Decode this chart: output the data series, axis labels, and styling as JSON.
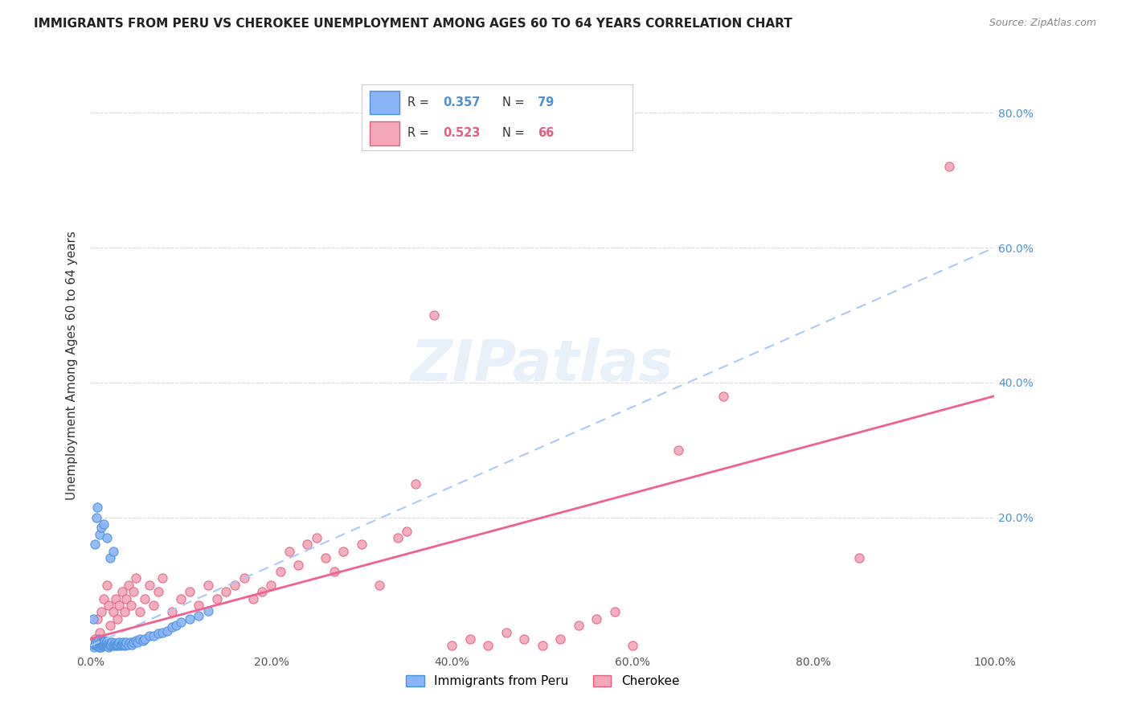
{
  "title": "IMMIGRANTS FROM PERU VS CHEROKEE UNEMPLOYMENT AMONG AGES 60 TO 64 YEARS CORRELATION CHART",
  "source": "Source: ZipAtlas.com",
  "ylabel": "Unemployment Among Ages 60 to 64 years",
  "xlim": [
    0.0,
    1.0
  ],
  "ylim": [
    0.0,
    0.85
  ],
  "xticks": [
    0.0,
    0.2,
    0.4,
    0.6,
    0.8,
    1.0
  ],
  "xticklabels": [
    "0.0%",
    "20.0%",
    "40.0%",
    "60.0%",
    "80.0%",
    "100.0%"
  ],
  "yticks": [
    0.0,
    0.2,
    0.4,
    0.6,
    0.8
  ],
  "right_yticks": [
    0.2,
    0.4,
    0.6,
    0.8
  ],
  "right_yticklabels": [
    "20.0%",
    "40.0%",
    "60.0%",
    "80.0%"
  ],
  "peru_color": "#8ab4f8",
  "cherokee_color": "#f4a7b9",
  "peru_edge_color": "#4a90d9",
  "cherokee_edge_color": "#e06080",
  "peru_line_color": "#aac8f8",
  "cherokee_line_color": "#f06090",
  "legend_r_peru": "0.357",
  "legend_n_peru": "79",
  "legend_r_cherokee": "0.523",
  "legend_n_cherokee": "66",
  "background_color": "#ffffff",
  "peru_scatter_x": [
    0.003,
    0.004,
    0.005,
    0.006,
    0.007,
    0.008,
    0.008,
    0.009,
    0.009,
    0.01,
    0.01,
    0.011,
    0.011,
    0.012,
    0.012,
    0.013,
    0.013,
    0.014,
    0.014,
    0.015,
    0.015,
    0.016,
    0.016,
    0.017,
    0.017,
    0.018,
    0.018,
    0.019,
    0.02,
    0.02,
    0.021,
    0.022,
    0.023,
    0.024,
    0.025,
    0.026,
    0.027,
    0.028,
    0.029,
    0.03,
    0.031,
    0.032,
    0.033,
    0.034,
    0.035,
    0.036,
    0.037,
    0.038,
    0.039,
    0.04,
    0.042,
    0.044,
    0.046,
    0.048,
    0.05,
    0.052,
    0.055,
    0.058,
    0.06,
    0.065,
    0.07,
    0.075,
    0.08,
    0.085,
    0.09,
    0.095,
    0.1,
    0.11,
    0.12,
    0.13,
    0.005,
    0.007,
    0.008,
    0.01,
    0.012,
    0.015,
    0.018,
    0.022,
    0.025
  ],
  "peru_scatter_y": [
    0.05,
    0.008,
    0.012,
    0.015,
    0.01,
    0.01,
    0.018,
    0.008,
    0.02,
    0.012,
    0.008,
    0.01,
    0.015,
    0.008,
    0.012,
    0.01,
    0.014,
    0.012,
    0.016,
    0.01,
    0.018,
    0.012,
    0.016,
    0.01,
    0.014,
    0.012,
    0.016,
    0.01,
    0.008,
    0.014,
    0.012,
    0.01,
    0.012,
    0.015,
    0.01,
    0.012,
    0.014,
    0.01,
    0.012,
    0.01,
    0.012,
    0.015,
    0.01,
    0.012,
    0.012,
    0.015,
    0.012,
    0.01,
    0.012,
    0.015,
    0.012,
    0.015,
    0.012,
    0.015,
    0.018,
    0.015,
    0.02,
    0.018,
    0.02,
    0.025,
    0.025,
    0.028,
    0.03,
    0.032,
    0.038,
    0.04,
    0.045,
    0.05,
    0.055,
    0.062,
    0.16,
    0.2,
    0.215,
    0.175,
    0.185,
    0.19,
    0.17,
    0.14,
    0.15
  ],
  "cherokee_scatter_x": [
    0.005,
    0.008,
    0.01,
    0.012,
    0.015,
    0.018,
    0.02,
    0.022,
    0.025,
    0.028,
    0.03,
    0.032,
    0.035,
    0.038,
    0.04,
    0.042,
    0.045,
    0.048,
    0.05,
    0.055,
    0.06,
    0.065,
    0.07,
    0.075,
    0.08,
    0.09,
    0.1,
    0.11,
    0.12,
    0.13,
    0.14,
    0.15,
    0.16,
    0.17,
    0.18,
    0.19,
    0.2,
    0.21,
    0.22,
    0.23,
    0.24,
    0.25,
    0.26,
    0.27,
    0.28,
    0.3,
    0.32,
    0.34,
    0.35,
    0.36,
    0.38,
    0.4,
    0.42,
    0.44,
    0.46,
    0.48,
    0.5,
    0.52,
    0.54,
    0.56,
    0.58,
    0.6,
    0.65,
    0.7,
    0.95,
    0.85
  ],
  "cherokee_scatter_y": [
    0.02,
    0.05,
    0.03,
    0.06,
    0.08,
    0.1,
    0.07,
    0.04,
    0.06,
    0.08,
    0.05,
    0.07,
    0.09,
    0.06,
    0.08,
    0.1,
    0.07,
    0.09,
    0.11,
    0.06,
    0.08,
    0.1,
    0.07,
    0.09,
    0.11,
    0.06,
    0.08,
    0.09,
    0.07,
    0.1,
    0.08,
    0.09,
    0.1,
    0.11,
    0.08,
    0.09,
    0.1,
    0.12,
    0.15,
    0.13,
    0.16,
    0.17,
    0.14,
    0.12,
    0.15,
    0.16,
    0.1,
    0.17,
    0.18,
    0.25,
    0.5,
    0.01,
    0.02,
    0.01,
    0.03,
    0.02,
    0.01,
    0.02,
    0.04,
    0.05,
    0.06,
    0.01,
    0.3,
    0.38,
    0.72,
    0.14
  ]
}
